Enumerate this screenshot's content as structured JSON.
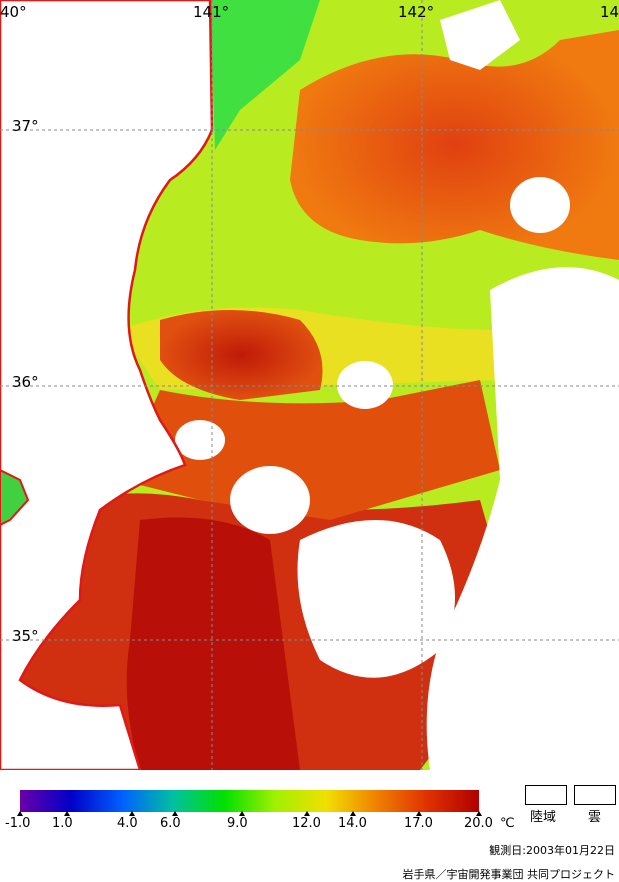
{
  "map": {
    "lon_labels": [
      "40°",
      "141°",
      "142°",
      "14"
    ],
    "lat_labels": [
      "37°",
      "36°",
      "35°"
    ]
  },
  "legend": {
    "ticks": [
      "-1.0",
      "1.0",
      "4.0",
      "6.0",
      "9.0",
      "12.0",
      "14.0",
      "17.0",
      "20.0"
    ],
    "unit": "℃",
    "land_label": "陸域",
    "cloud_label": "雲",
    "colors": [
      "#6a00a8",
      "#0000c8",
      "#0060ff",
      "#00c0a0",
      "#00e000",
      "#a0f000",
      "#f0e000",
      "#f08000",
      "#e03000",
      "#b00000"
    ]
  },
  "footer": {
    "date": "観測日:2003年01月22日",
    "credit": "岩手県／宇宙開発事業団 共同プロジェクト"
  }
}
